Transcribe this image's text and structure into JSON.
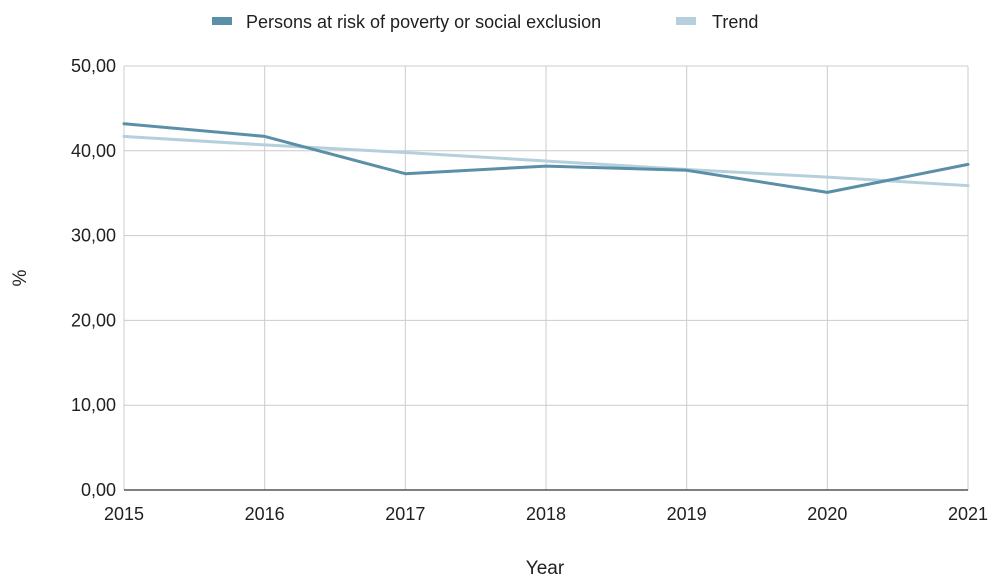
{
  "chart_data": {
    "type": "line",
    "title": "",
    "xlabel": "Year",
    "ylabel": "%",
    "x": [
      "2015",
      "2016",
      "2017",
      "2018",
      "2019",
      "2020",
      "2021"
    ],
    "ylim": [
      0,
      50
    ],
    "yticks": [
      "0,00",
      "10,00",
      "20,00",
      "30,00",
      "40,00",
      "50,00"
    ],
    "ytick_values": [
      0,
      10,
      20,
      30,
      40,
      50
    ],
    "grid": true,
    "legend_position": "top-center",
    "series": [
      {
        "name": "Persons at risk of poverty or social exclusion",
        "color": "#5b8fa8",
        "values": [
          43.2,
          41.7,
          37.3,
          38.2,
          37.7,
          35.1,
          38.4
        ]
      },
      {
        "name": "Trend",
        "color": "#b5d0dc",
        "values": [
          41.7,
          40.7,
          39.8,
          38.8,
          37.8,
          36.9,
          35.9
        ]
      }
    ]
  }
}
